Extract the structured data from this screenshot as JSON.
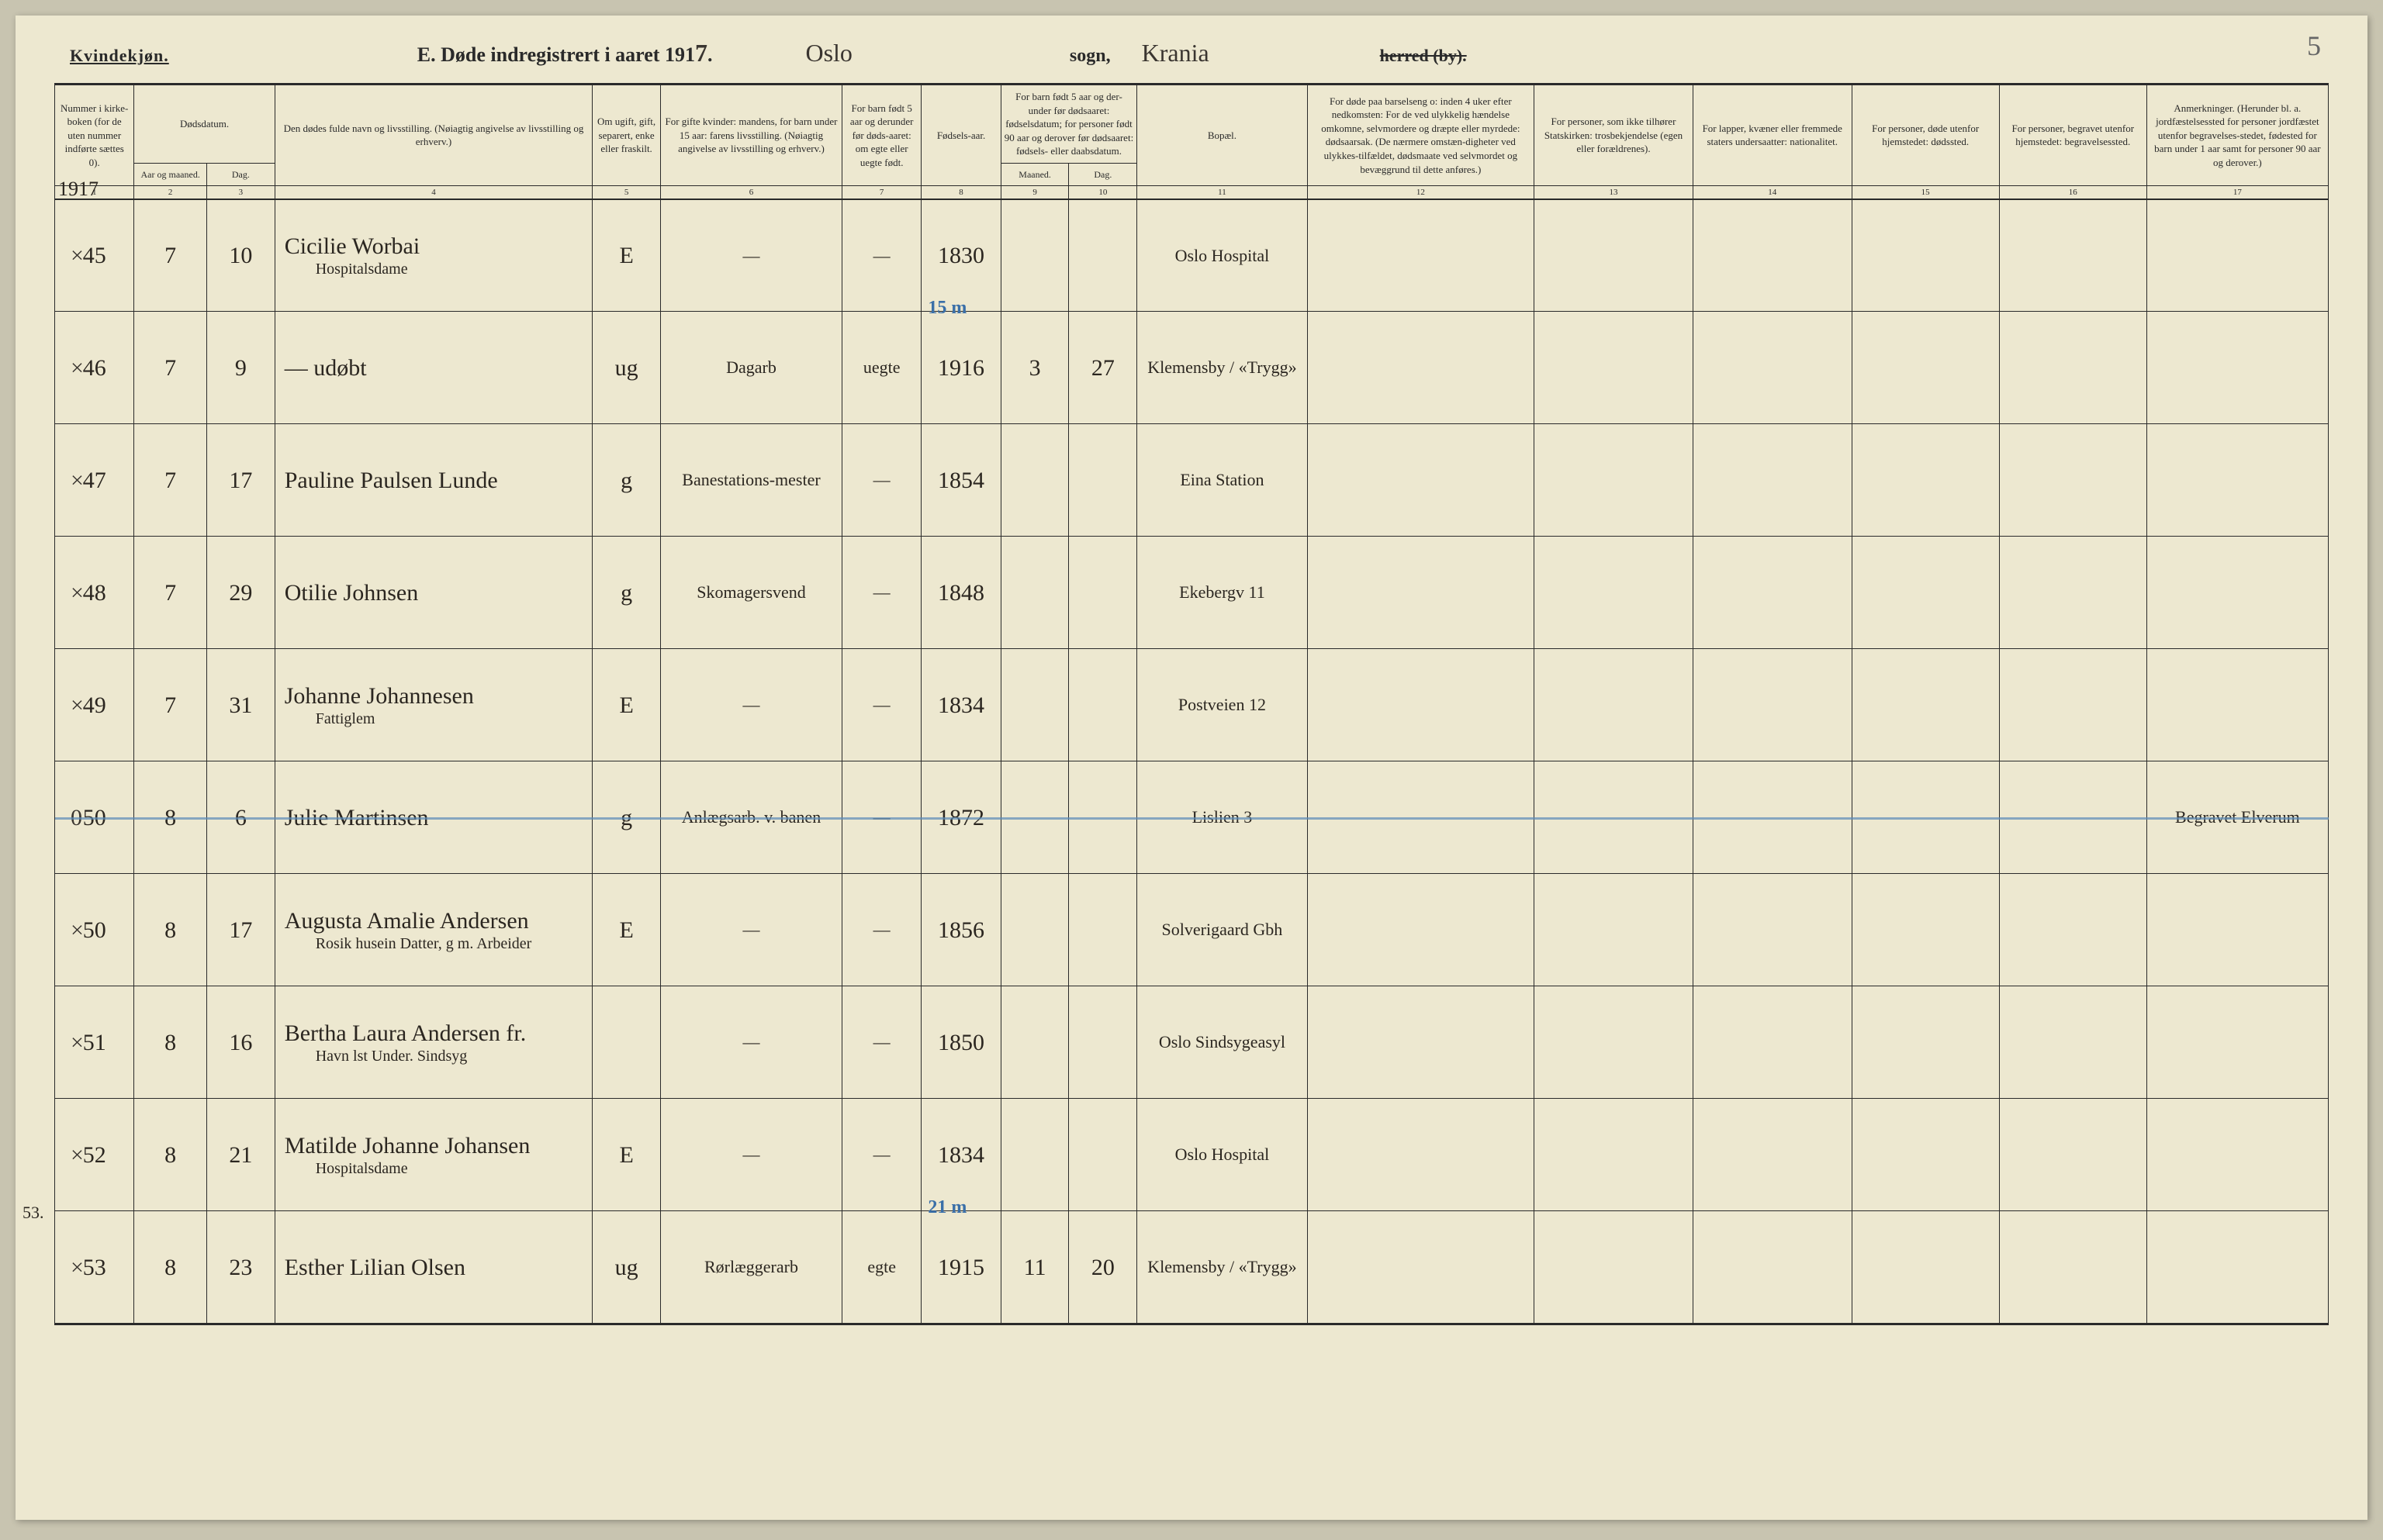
{
  "page_corner": "5",
  "header": {
    "gender": "Kvindekjøn.",
    "title_prefix": "E.  Døde indregistrert i aaret 191",
    "year_digit": "7",
    "sogn_hand": "Oslo",
    "sogn_label": "sogn,",
    "herred_hand": "Krania",
    "herred_label": "herred (by)."
  },
  "columns": {
    "c1": "Nummer i kirke-boken (for de uten nummer indførte sættes 0).",
    "c2": "Dødsdatum.",
    "c2a": "Aar og maaned.",
    "c2b": "Dag.",
    "c4": "Den dødes fulde navn og livsstilling.\n(Nøiagtig angivelse av livsstilling og erhverv.)",
    "c5": "Om ugift, gift, separert, enke eller fraskilt.",
    "c6": "For gifte kvinder: mandens,\nfor barn under 15 aar: farens livsstilling.\n(Nøiagtig angivelse av livsstilling og erhverv.)",
    "c7": "For barn født 5 aar og derunder før døds-aaret: om egte eller uegte født.",
    "c8": "Fødsels-aar.",
    "c9_10": "For barn født 5 aar og der-under før dødsaaret: fødselsdatum; for personer født 90 aar og derover før dødsaaret: fødsels- eller daabsdatum.",
    "c9": "Maaned.",
    "c10": "Dag.",
    "c11": "Bopæl.",
    "c12": "For døde paa barselseng o: inden 4 uker efter nedkomsten: For de ved ulykkelig hændelse omkomne, selvmordere og dræpte eller myrdede: dødsaarsak. (De nærmere omstæn-digheter ved ulykkes-tilfældet, dødsmaate ved selvmordet og bevæggrund til dette anføres.)",
    "c13": "For personer, som ikke tilhører Statskirken: trosbekjendelse (egen eller forældrenes).",
    "c14": "For lapper, kvæner eller fremmede staters undersaatter: nationalitet.",
    "c15": "For personer, døde utenfor hjemstedet: dødssted.",
    "c16": "For personer, begravet utenfor hjemstedet: begravelsessted.",
    "c17": "Anmerkninger. (Herunder bl. a. jordfæstelsessted for personer jordfæstet utenfor begravelses-stedet, fødested for barn under 1 aar samt for personer 90 aar og derover.)"
  },
  "colnums": [
    "1",
    "2",
    "3",
    "4",
    "5",
    "6",
    "7",
    "8",
    "9",
    "10",
    "11",
    "12",
    "13",
    "14",
    "15",
    "16",
    "17"
  ],
  "year_top": "1917",
  "rows": [
    {
      "x": "×",
      "num": "45",
      "mon": "7",
      "day": "10",
      "name": "Cicilie Worbai",
      "name_sub": "Hospitalsdame",
      "stat": "E",
      "husb": "—",
      "egte": "—",
      "year": "1830",
      "bmon": "",
      "bday": "",
      "bopael": "Oslo Hospital",
      "blue": ""
    },
    {
      "x": "×",
      "num": "46",
      "mon": "7",
      "day": "9",
      "name": "— udøbt",
      "name_sub": "",
      "stat": "ug",
      "husb": "Dagarb",
      "egte": "uegte",
      "year": "1916",
      "bmon": "3",
      "bday": "27",
      "bopael": "Klemensby / «Trygg»",
      "blue": "15 m"
    },
    {
      "x": "×",
      "num": "47",
      "mon": "7",
      "day": "17",
      "name": "Pauline Paulsen Lunde",
      "name_sub": "",
      "stat": "g",
      "husb": "Banestations-mester",
      "egte": "—",
      "year": "1854",
      "bmon": "",
      "bday": "",
      "bopael": "Eina Station",
      "blue": ""
    },
    {
      "x": "×",
      "num": "48",
      "mon": "7",
      "day": "29",
      "name": "Otilie Johnsen",
      "name_sub": "",
      "stat": "g",
      "husb": "Skomagersvend",
      "egte": "—",
      "year": "1848",
      "bmon": "",
      "bday": "",
      "bopael": "Ekebergv 11",
      "blue": ""
    },
    {
      "x": "×",
      "num": "49",
      "mon": "7",
      "day": "31",
      "name": "Johanne Johannesen",
      "name_sub": "Fattiglem",
      "stat": "E",
      "husb": "—",
      "egte": "—",
      "year": "1834",
      "bmon": "",
      "bday": "",
      "bopael": "Postveien 12",
      "blue": ""
    },
    {
      "x": "0",
      "num": "50",
      "mon": "8",
      "day": "6",
      "name": "Julie Martinsen",
      "name_sub": "",
      "stat": "g",
      "husb": "Anlægsarb. v. banen",
      "egte": "—",
      "year": "1872",
      "bmon": "",
      "bday": "",
      "bopael": "Lislien 3",
      "blue": "",
      "struck": true,
      "anm": "Begravet Elverum"
    },
    {
      "x": "×",
      "num": "50",
      "mon": "8",
      "day": "17",
      "name": "Augusta Amalie Andersen",
      "name_sub": "Rosik husein Datter, g m. Arbeider",
      "stat": "E",
      "husb": "—",
      "egte": "—",
      "year": "1856",
      "bmon": "",
      "bday": "",
      "bopael": "Solverigaard Gbh",
      "blue": ""
    },
    {
      "x": "×",
      "num": "51",
      "mon": "8",
      "day": "16",
      "name": "Bertha Laura Andersen fr.",
      "name_sub": "Havn lst Under. Sindsyg",
      "stat": "",
      "husb": "—",
      "egte": "—",
      "year": "1850",
      "bmon": "",
      "bday": "",
      "bopael": "Oslo Sindsygeasyl",
      "blue": ""
    },
    {
      "x": "×",
      "num": "52",
      "mon": "8",
      "day": "21",
      "name": "Matilde Johanne Johansen",
      "name_sub": "Hospitalsdame",
      "stat": "E",
      "husb": "—",
      "egte": "—",
      "year": "1834",
      "bmon": "",
      "bday": "",
      "bopael": "Oslo Hospital",
      "blue": ""
    },
    {
      "x": "×",
      "num": "53",
      "mon": "8",
      "day": "23",
      "name": "Esther Lilian Olsen",
      "name_sub": "",
      "stat": "ug",
      "husb": "Rørlæggerarb",
      "egte": "egte",
      "year": "1915",
      "bmon": "11",
      "bday": "20",
      "bopael": "Klemensby / «Trygg»",
      "blue": "21 m",
      "num_side": "53."
    }
  ]
}
